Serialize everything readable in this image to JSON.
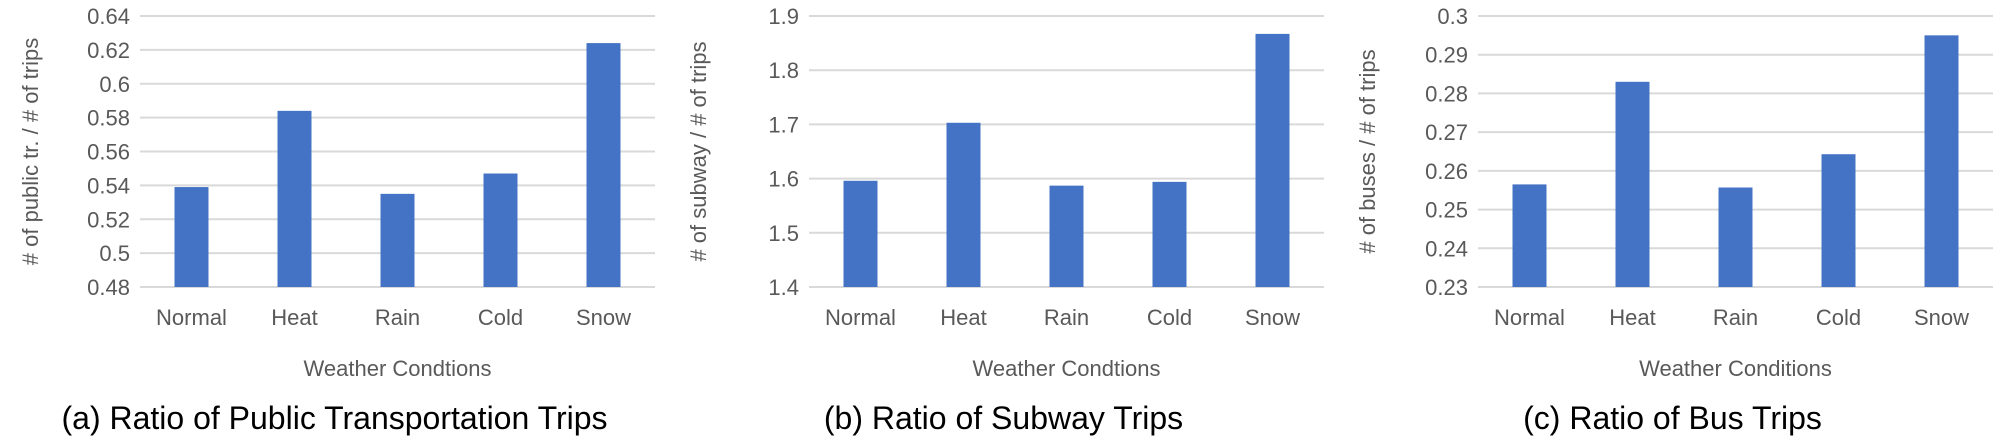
{
  "colors": {
    "bar": "#4472C4",
    "grid": "#D9D9D9",
    "axis_text": "#595959"
  },
  "chart_data": [
    {
      "type": "bar",
      "caption": "(a) Ratio of Public Transportation Trips",
      "xlabel": "Weather Condtions",
      "ylabel": "# of public tr. / # of trips",
      "categories": [
        "Normal",
        "Heat",
        "Rain",
        "Cold",
        "Snow"
      ],
      "values": [
        0.539,
        0.584,
        0.535,
        0.547,
        0.624
      ],
      "ylim": [
        0.48,
        0.64
      ],
      "yticks": [
        "0.48",
        "0.5",
        "0.52",
        "0.54",
        "0.56",
        "0.58",
        "0.6",
        "0.62",
        "0.64"
      ],
      "grid": true
    },
    {
      "type": "bar",
      "caption": "(b) Ratio of Subway Trips",
      "xlabel": "Weather Condtions",
      "ylabel": "# of subway / # of trips",
      "categories": [
        "Normal",
        "Heat",
        "Rain",
        "Cold",
        "Snow"
      ],
      "values": [
        1.596,
        1.703,
        1.587,
        1.594,
        1.867
      ],
      "ylim": [
        1.4,
        1.9
      ],
      "yticks": [
        "1.4",
        "1.5",
        "1.6",
        "1.7",
        "1.8",
        "1.9"
      ],
      "grid": true
    },
    {
      "type": "bar",
      "caption": "(c) Ratio of Bus Trips",
      "xlabel": "Weather Conditions",
      "ylabel": "# of buses / # of trips",
      "categories": [
        "Normal",
        "Heat",
        "Rain",
        "Cold",
        "Snow"
      ],
      "values": [
        0.2565,
        0.283,
        0.2557,
        0.2643,
        0.295
      ],
      "ylim": [
        0.23,
        0.3
      ],
      "yticks": [
        "0.23",
        "0.24",
        "0.25",
        "0.26",
        "0.27",
        "0.28",
        "0.29",
        "0.3"
      ],
      "grid": true
    }
  ]
}
